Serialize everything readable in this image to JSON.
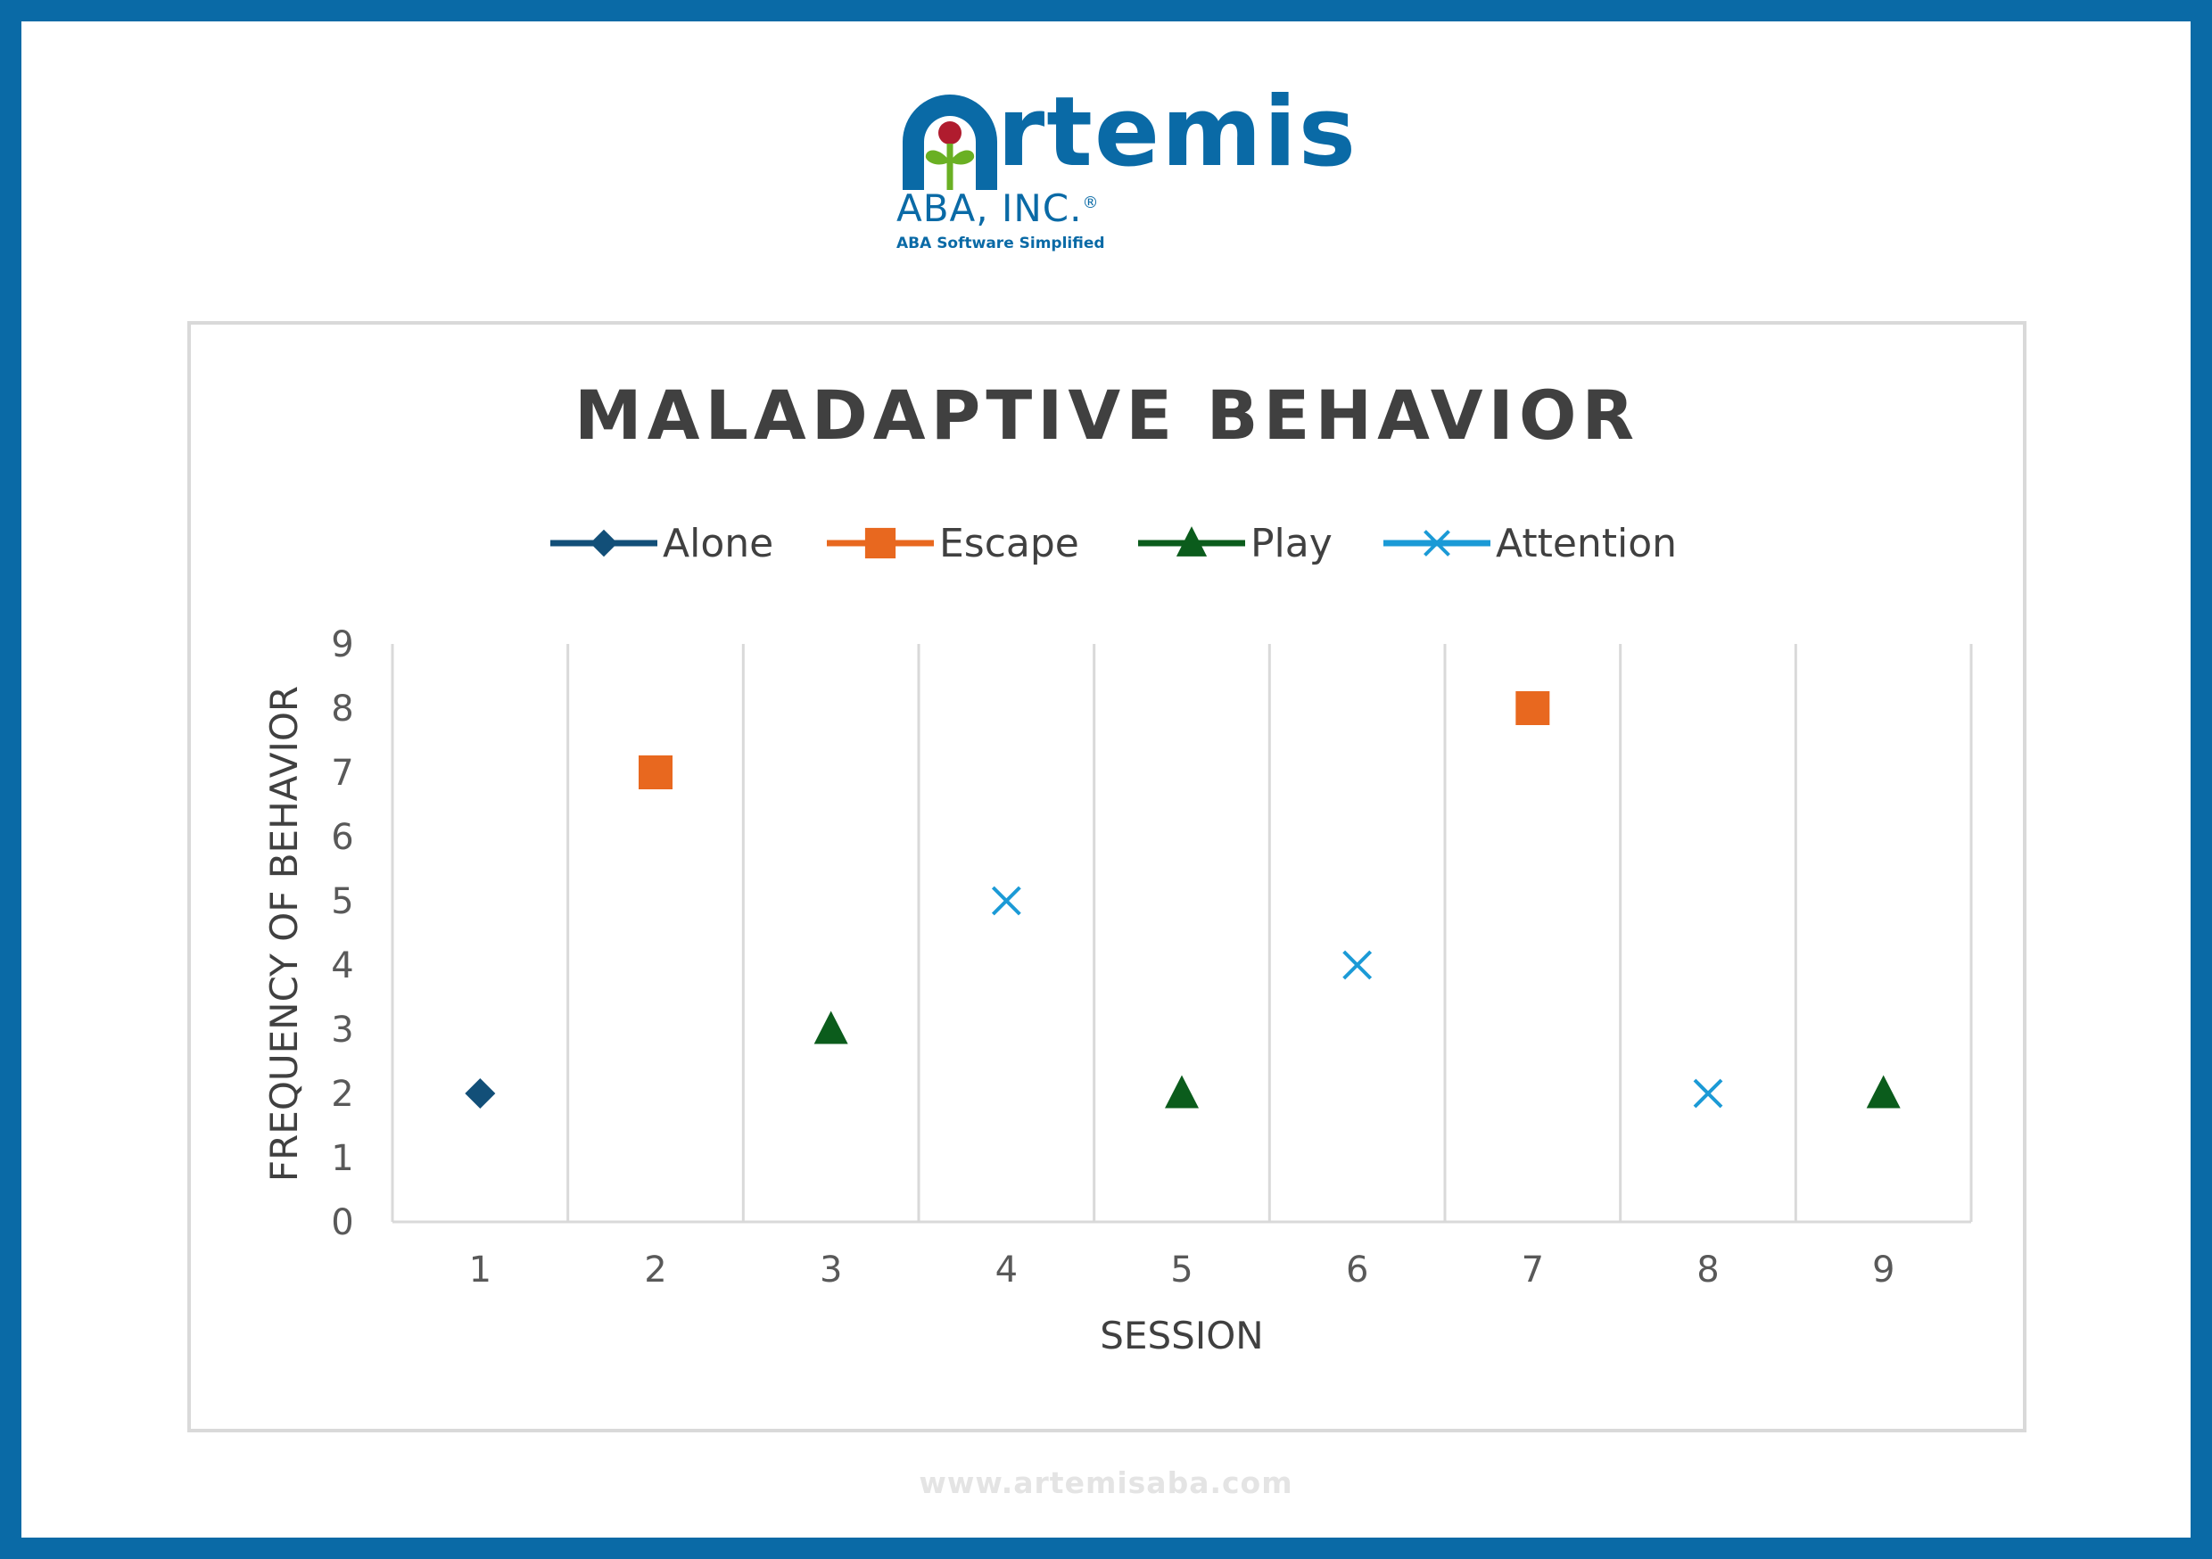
{
  "brand": {
    "name_rest": "rtemis",
    "sub": "ABA, INC.",
    "registered": "®",
    "tagline": "ABA Software Simplified",
    "url": "www.artemisaba.com",
    "primary_color": "#0a6aa6",
    "accent_red": "#b01c2e",
    "accent_green": "#6ab023"
  },
  "chart_data": {
    "type": "scatter",
    "title": "MALADAPTIVE BEHAVIOR",
    "xlabel": "SESSION",
    "ylabel": "FREQUENCY OF BEHAVIOR",
    "categories": [
      "1",
      "2",
      "3",
      "4",
      "5",
      "6",
      "7",
      "8",
      "9"
    ],
    "ylim": [
      0,
      9
    ],
    "yticks": [
      "0",
      "1",
      "2",
      "3",
      "4",
      "5",
      "6",
      "7",
      "8",
      "9"
    ],
    "grid": "vertical",
    "legend_position": "top",
    "series": [
      {
        "name": "Alone",
        "marker": "diamond",
        "color": "#124f78",
        "points": [
          {
            "x": 1,
            "y": 2
          }
        ]
      },
      {
        "name": "Escape",
        "marker": "square",
        "color": "#e8681f",
        "points": [
          {
            "x": 2,
            "y": 7
          },
          {
            "x": 7,
            "y": 8
          }
        ]
      },
      {
        "name": "Play",
        "marker": "triangle",
        "color": "#0b5c1c",
        "points": [
          {
            "x": 3,
            "y": 3
          },
          {
            "x": 5,
            "y": 2
          },
          {
            "x": 9,
            "y": 2
          }
        ]
      },
      {
        "name": "Attention",
        "marker": "x",
        "color": "#1b9ad6",
        "points": [
          {
            "x": 4,
            "y": 5
          },
          {
            "x": 6,
            "y": 4
          },
          {
            "x": 8,
            "y": 2
          }
        ]
      }
    ]
  }
}
